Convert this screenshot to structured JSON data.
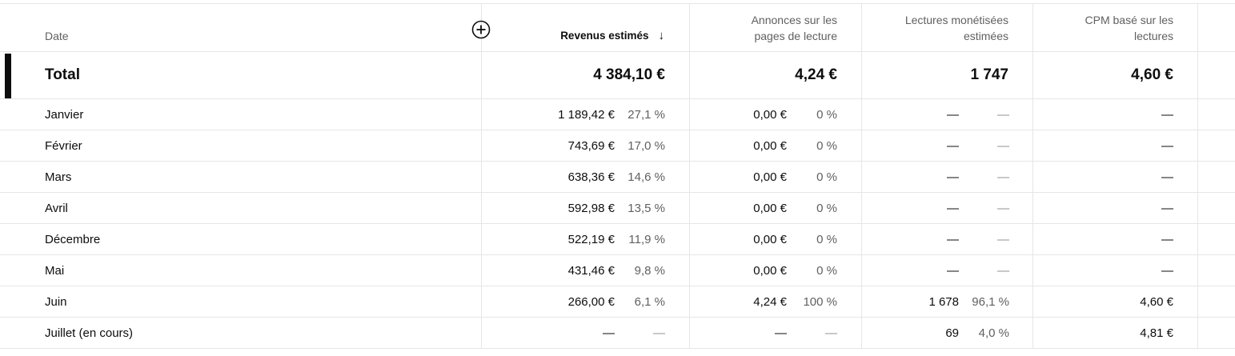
{
  "table": {
    "headers": {
      "date": "Date",
      "revenue": "Revenus estimés",
      "ads_line1": "Annonces sur les",
      "ads_line2": "pages de lecture",
      "monetized_line1": "Lectures monétisées",
      "monetized_line2": "estimées",
      "cpm_line1": "CPM basé sur les",
      "cpm_line2": "lectures",
      "sort_icon": "arrow-down-icon",
      "add_icon": "add-circle-icon"
    },
    "total": {
      "label": "Total",
      "revenue": "4 384,10 €",
      "ads": "4,24 €",
      "monetized": "1 747",
      "cpm": "4,60 €"
    },
    "rows": [
      {
        "label": "Janvier",
        "revenue": "1 189,42 €",
        "revenue_pct": "27,1 %",
        "ads": "0,00 €",
        "ads_pct": "0 %",
        "monetized": "—",
        "monetized_pct": "—",
        "cpm": "—"
      },
      {
        "label": "Février",
        "revenue": "743,69 €",
        "revenue_pct": "17,0 %",
        "ads": "0,00 €",
        "ads_pct": "0 %",
        "monetized": "—",
        "monetized_pct": "—",
        "cpm": "—"
      },
      {
        "label": "Mars",
        "revenue": "638,36 €",
        "revenue_pct": "14,6 %",
        "ads": "0,00 €",
        "ads_pct": "0 %",
        "monetized": "—",
        "monetized_pct": "—",
        "cpm": "—"
      },
      {
        "label": "Avril",
        "revenue": "592,98 €",
        "revenue_pct": "13,5 %",
        "ads": "0,00 €",
        "ads_pct": "0 %",
        "monetized": "—",
        "monetized_pct": "—",
        "cpm": "—"
      },
      {
        "label": "Décembre",
        "revenue": "522,19 €",
        "revenue_pct": "11,9 %",
        "ads": "0,00 €",
        "ads_pct": "0 %",
        "monetized": "—",
        "monetized_pct": "—",
        "cpm": "—"
      },
      {
        "label": "Mai",
        "revenue": "431,46 €",
        "revenue_pct": "9,8 %",
        "ads": "0,00 €",
        "ads_pct": "0 %",
        "monetized": "—",
        "monetized_pct": "—",
        "cpm": "—"
      },
      {
        "label": "Juin",
        "revenue": "266,00 €",
        "revenue_pct": "6,1 %",
        "ads": "4,24 €",
        "ads_pct": "100 %",
        "monetized": "1 678",
        "monetized_pct": "96,1 %",
        "cpm": "4,60 €"
      },
      {
        "label": "Juillet (en cours)",
        "revenue": "—",
        "revenue_pct": "—",
        "ads": "—",
        "ads_pct": "—",
        "monetized": "69",
        "monetized_pct": "4,0 %",
        "cpm": "4,81 €"
      }
    ]
  }
}
